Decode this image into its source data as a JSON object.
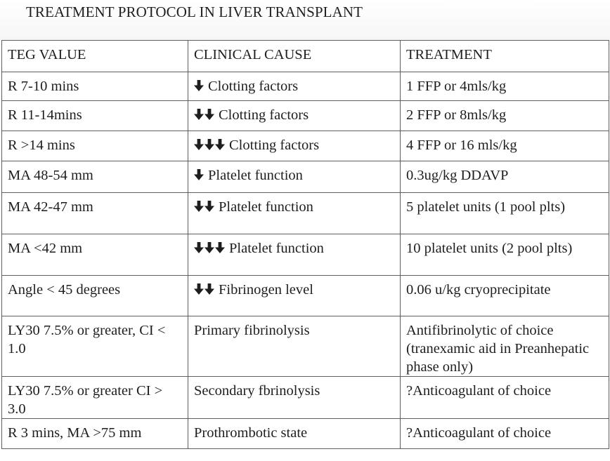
{
  "title": "TREATMENT PROTOCOL IN LIVER TRANSPLANT",
  "table": {
    "headers": [
      "TEG VALUE",
      "CLINICAL CAUSE",
      "TREATMENT"
    ],
    "rows": [
      {
        "teg": "R 7-10 mins",
        "arrows": 1,
        "cause": "Clotting factors",
        "treatment": "1 FFP or 4mls/kg"
      },
      {
        "teg": "R 11-14mins",
        "arrows": 2,
        "cause": "Clotting factors",
        "treatment": "2 FFP or 8mls/kg"
      },
      {
        "teg": "R >14 mins",
        "arrows": 3,
        "cause": "Clotting factors",
        "treatment": "4 FFP or 16 mls/kg"
      },
      {
        "teg": "MA 48-54 mm",
        "arrows": 1,
        "cause": "Platelet function",
        "treatment": "0.3ug/kg DDAVP"
      },
      {
        "teg": "MA 42-47 mm",
        "arrows": 2,
        "cause": "Platelet function",
        "treatment": "5 platelet units (1 pool plts)"
      },
      {
        "teg": "MA <42 mm",
        "arrows": 3,
        "cause": "Platelet function",
        "treatment": "10 platelet units (2 pool plts)"
      },
      {
        "teg": "Angle < 45 degrees",
        "arrows": 2,
        "cause": "Fibrinogen level",
        "treatment": "0.06 u/kg cryoprecipitate"
      },
      {
        "teg": "LY30 7.5% or greater, CI < 1.0",
        "arrows": 0,
        "cause": "Primary fibrinolysis",
        "treatment": "Antifibrinolytic of choice (tranexamic aid in Preanhepatic phase only)"
      },
      {
        "teg": "LY30 7.5% or greater CI > 3.0",
        "arrows": 0,
        "cause": "Secondary fbrinolysis",
        "treatment": "?Anticoagulant of choice"
      },
      {
        "teg": "R  3 mins, MA >75 mm",
        "arrows": 0,
        "cause": "Prothrombotic state",
        "treatment": "?Anticoagulant of choice"
      }
    ]
  },
  "icons": {
    "arrow": "down-arrow-icon"
  }
}
